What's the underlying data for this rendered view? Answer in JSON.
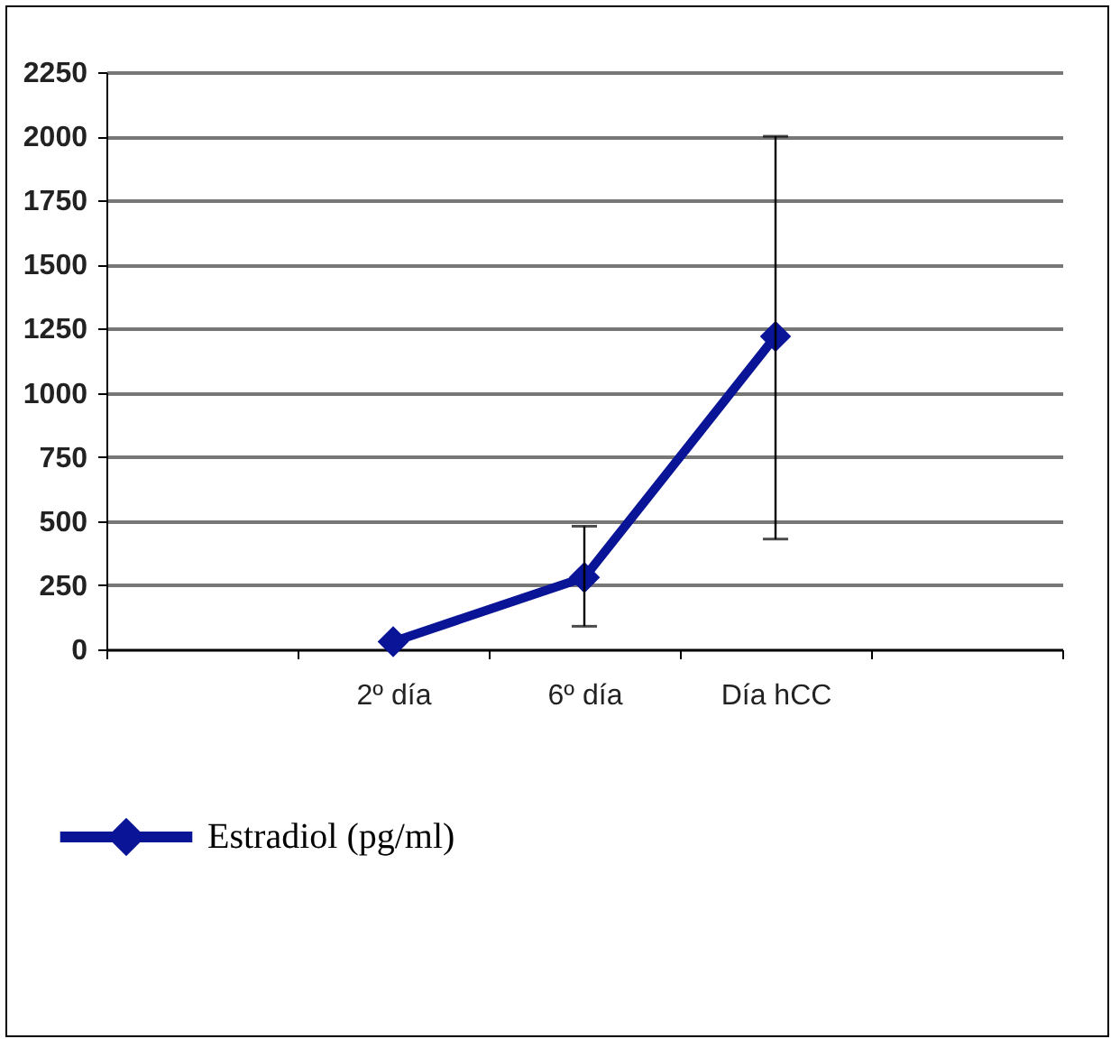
{
  "chart_data": {
    "type": "line",
    "categories": [
      null,
      "2º día",
      "6º día",
      "Día hCC",
      null
    ],
    "series": [
      {
        "name": "Estradiol (pg/ml)",
        "color": "#0a1496",
        "values": [
          null,
          30,
          280,
          1220,
          null
        ],
        "errors": [
          null,
          null,
          [
            90,
            480
          ],
          [
            430,
            2000
          ],
          null
        ]
      }
    ],
    "ylim": [
      0,
      2250
    ],
    "yticks": [
      0,
      250,
      500,
      750,
      1000,
      1250,
      1500,
      1750,
      2000,
      2250
    ],
    "grid": "y",
    "legend": "bottom",
    "marker": "diamond",
    "line_style": "solid"
  }
}
